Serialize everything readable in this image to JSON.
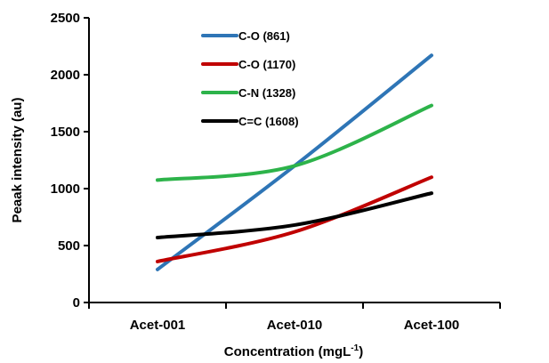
{
  "chart_data": {
    "type": "line",
    "title": "",
    "categories": [
      "Acet-001",
      "Acet-010",
      "Acet-100"
    ],
    "ylabel": "Peaak intensity (au)",
    "xlabel": "Concentration (mgL",
    "xlabel_sup": "-1",
    "xlabel_suffix": ")",
    "ylim": [
      0,
      2500
    ],
    "yticks": [
      0,
      500,
      1000,
      1500,
      2000,
      2500
    ],
    "ytick_labels": [
      "0",
      "500",
      "1000",
      "1500",
      "2000",
      "2500"
    ],
    "grid": false,
    "smooth": true,
    "legend_position": "top-center",
    "series": [
      {
        "name": "C-O (861)",
        "color": "#2e75b6",
        "values": [
          290,
          1200,
          2170
        ]
      },
      {
        "name": "C-O (1170)",
        "color": "#c00000",
        "values": [
          360,
          620,
          1100
        ]
      },
      {
        "name": "C-N (1328)",
        "color": "#2db34a",
        "values": [
          1075,
          1200,
          1730
        ]
      },
      {
        "name": "C=C (1608)",
        "color": "#000000",
        "values": [
          570,
          680,
          960
        ]
      }
    ]
  }
}
